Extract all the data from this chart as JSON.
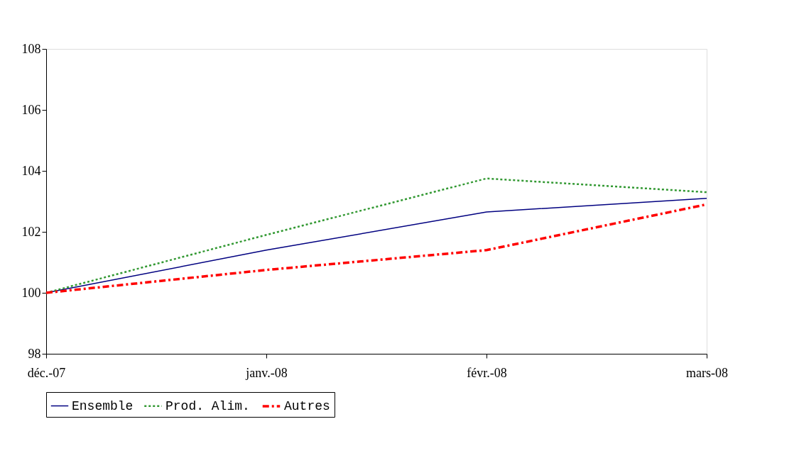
{
  "chart_data": {
    "type": "line",
    "categories": [
      "déc.-07",
      "janv.-08",
      "févr.-08",
      "mars-08"
    ],
    "series": [
      {
        "name": "Ensemble",
        "color": "#000080",
        "line_style": "solid",
        "values": [
          100,
          101.4,
          102.65,
          103.1
        ]
      },
      {
        "name": "Prod. Alim.",
        "color": "#339933",
        "line_style": "dotted",
        "values": [
          100,
          101.9,
          103.75,
          103.3
        ]
      },
      {
        "name": "Autres",
        "color": "#ff0000",
        "line_style": "dashed",
        "values": [
          100,
          100.75,
          101.4,
          102.9
        ]
      }
    ],
    "ylim": [
      98,
      108
    ],
    "yticks": [
      98,
      100,
      102,
      104,
      106,
      108
    ],
    "grid": false,
    "legend": "bottom",
    "marker": "none"
  }
}
